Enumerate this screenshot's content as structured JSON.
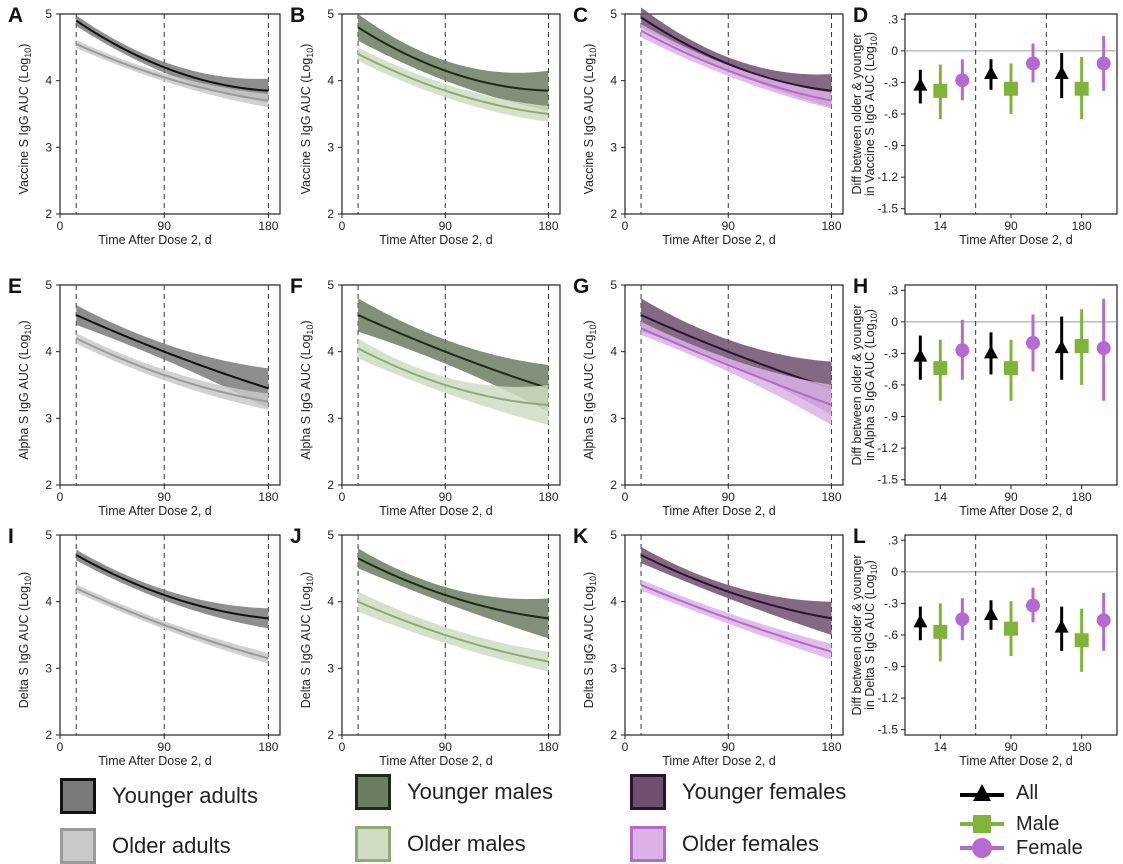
{
  "colors": {
    "younger_adults_fill": "#7a7a7a",
    "younger_adults_line": "#111111",
    "older_adults_fill": "#c9c9c9",
    "older_adults_line": "#9a9a9a",
    "younger_males_fill": "#6d7d62",
    "younger_males_line": "#1d2a16",
    "older_males_fill": "#cfdcc3",
    "older_males_line": "#8eaa77",
    "younger_females_fill": "#6e4f6f",
    "younger_females_line": "#2a1430",
    "older_females_fill": "#dcb2e6",
    "older_females_line": "#b46ac6",
    "all_marker": "#000000",
    "male_marker": "#7fb33a",
    "female_marker": "#b46ad1"
  },
  "legend": {
    "younger_adults": "Younger adults",
    "older_adults": "Older adults",
    "younger_males": "Younger males",
    "older_males": "Older males",
    "younger_females": "Younger females",
    "older_females": "Older females",
    "all": "All",
    "male": "Male",
    "female": "Female"
  },
  "chart_data": [
    {
      "panel": "A",
      "type": "line",
      "ylabel": "Vaccine S IgG AUC (Log10)",
      "xlabel": "Time After Dose 2, d",
      "xlim": [
        0,
        190
      ],
      "ylim": [
        2,
        5
      ],
      "xticks": [
        0,
        90,
        180
      ],
      "yticks": [
        2,
        3,
        4,
        5
      ],
      "vlines": [
        14,
        90,
        180
      ],
      "series": [
        {
          "group": "Younger adults",
          "x": [
            14,
            90,
            180
          ],
          "y": [
            4.9,
            4.2,
            3.85
          ],
          "band": [
            0.08,
            0.08,
            0.18
          ]
        },
        {
          "group": "Older adults",
          "x": [
            14,
            90,
            180
          ],
          "y": [
            4.55,
            4.05,
            3.7
          ],
          "band": [
            0.06,
            0.06,
            0.1
          ]
        }
      ]
    },
    {
      "panel": "B",
      "type": "line",
      "ylabel": "Vaccine S IgG AUC (Log10)",
      "xlabel": "Time After Dose 2, d",
      "xlim": [
        0,
        190
      ],
      "ylim": [
        2,
        5
      ],
      "xticks": [
        0,
        90,
        180
      ],
      "yticks": [
        2,
        3,
        4,
        5
      ],
      "vlines": [
        14,
        90,
        180
      ],
      "series": [
        {
          "group": "Younger males",
          "x": [
            14,
            90,
            180
          ],
          "y": [
            4.8,
            4.15,
            3.85
          ],
          "band": [
            0.2,
            0.15,
            0.3
          ]
        },
        {
          "group": "Older males",
          "x": [
            14,
            90,
            180
          ],
          "y": [
            4.4,
            3.85,
            3.5
          ],
          "band": [
            0.1,
            0.1,
            0.12
          ]
        }
      ]
    },
    {
      "panel": "C",
      "type": "line",
      "ylabel": "Vaccine S IgG AUC (Log10)",
      "xlabel": "Time After Dose 2, d",
      "xlim": [
        0,
        190
      ],
      "ylim": [
        2,
        5
      ],
      "xticks": [
        0,
        90,
        180
      ],
      "yticks": [
        2,
        3,
        4,
        5
      ],
      "vlines": [
        14,
        90,
        180
      ],
      "series": [
        {
          "group": "Younger females",
          "x": [
            14,
            90,
            180
          ],
          "y": [
            4.95,
            4.25,
            3.85
          ],
          "band": [
            0.15,
            0.1,
            0.25
          ]
        },
        {
          "group": "Older females",
          "x": [
            14,
            90,
            180
          ],
          "y": [
            4.75,
            4.15,
            3.7
          ],
          "band": [
            0.1,
            0.08,
            0.12
          ]
        }
      ]
    },
    {
      "panel": "D",
      "type": "scatter",
      "ylabel": "Diff between older & younger in Vaccine S IgG AUC (Log10)",
      "xlabel": "Time After Dose 2, d",
      "categories": [
        "14",
        "90",
        "180"
      ],
      "yticks": [
        ".3",
        "0",
        "-.3",
        "-.6",
        "-.9",
        "-1.2",
        "-1.5"
      ],
      "ylim": [
        -1.55,
        0.35
      ],
      "series": [
        {
          "name": "All",
          "values": [
            -0.33,
            -0.22,
            -0.22
          ],
          "low": [
            -0.5,
            -0.37,
            -0.45
          ],
          "high": [
            -0.18,
            -0.08,
            -0.02
          ]
        },
        {
          "name": "Male",
          "values": [
            -0.38,
            -0.36,
            -0.36
          ],
          "low": [
            -0.65,
            -0.6,
            -0.65
          ],
          "high": [
            -0.13,
            -0.12,
            -0.06
          ]
        },
        {
          "name": "Female",
          "values": [
            -0.28,
            -0.12,
            -0.12
          ],
          "low": [
            -0.47,
            -0.3,
            -0.38
          ],
          "high": [
            -0.08,
            0.07,
            0.14
          ]
        }
      ]
    },
    {
      "panel": "E",
      "type": "line",
      "ylabel": "Alpha S IgG AUC (Log10)",
      "xlabel": "Time After Dose 2, d",
      "xlim": [
        0,
        190
      ],
      "ylim": [
        2,
        5
      ],
      "xticks": [
        0,
        90,
        180
      ],
      "yticks": [
        2,
        3,
        4,
        5
      ],
      "vlines": [
        14,
        90,
        180
      ],
      "series": [
        {
          "group": "Younger adults",
          "x": [
            14,
            90,
            180
          ],
          "y": [
            4.55,
            4.0,
            3.45
          ],
          "band": [
            0.15,
            0.12,
            0.3
          ]
        },
        {
          "group": "Older adults",
          "x": [
            14,
            90,
            180
          ],
          "y": [
            4.2,
            3.65,
            3.25
          ],
          "band": [
            0.08,
            0.08,
            0.12
          ]
        }
      ]
    },
    {
      "panel": "F",
      "type": "line",
      "ylabel": "Alpha S IgG AUC (Log10)",
      "xlabel": "Time After Dose 2, d",
      "xlim": [
        0,
        190
      ],
      "ylim": [
        2,
        5
      ],
      "xticks": [
        0,
        90,
        180
      ],
      "yticks": [
        2,
        3,
        4,
        5
      ],
      "vlines": [
        14,
        90,
        180
      ],
      "series": [
        {
          "group": "Younger males",
          "x": [
            14,
            90,
            180
          ],
          "y": [
            4.55,
            4.0,
            3.45
          ],
          "band": [
            0.25,
            0.18,
            0.35
          ]
        },
        {
          "group": "Older males",
          "x": [
            14,
            90,
            180
          ],
          "y": [
            4.05,
            3.5,
            3.2
          ],
          "band": [
            0.15,
            0.12,
            0.3
          ]
        }
      ]
    },
    {
      "panel": "G",
      "type": "line",
      "ylabel": "Alpha S IgG AUC (Log10)",
      "xlabel": "Time After Dose 2, d",
      "xlim": [
        0,
        190
      ],
      "ylim": [
        2,
        5
      ],
      "xticks": [
        0,
        90,
        180
      ],
      "yticks": [
        2,
        3,
        4,
        5
      ],
      "vlines": [
        14,
        90,
        180
      ],
      "series": [
        {
          "group": "Younger females",
          "x": [
            14,
            90,
            180
          ],
          "y": [
            4.55,
            4.0,
            3.45
          ],
          "band": [
            0.25,
            0.18,
            0.4
          ]
        },
        {
          "group": "Older females",
          "x": [
            14,
            90,
            180
          ],
          "y": [
            4.35,
            3.8,
            3.2
          ],
          "band": [
            0.1,
            0.1,
            0.3
          ]
        }
      ]
    },
    {
      "panel": "H",
      "type": "scatter",
      "ylabel": "Diff between older & younger in Alpha S IgG AUC (Log10)",
      "xlabel": "Time After Dose 2, d",
      "categories": [
        "14",
        "90",
        "180"
      ],
      "yticks": [
        ".3",
        "0",
        "-.3",
        "-.6",
        "-.9",
        "-1.2",
        "-1.5"
      ],
      "ylim": [
        -1.55,
        0.35
      ],
      "series": [
        {
          "name": "All",
          "values": [
            -0.33,
            -0.3,
            -0.25
          ],
          "low": [
            -0.55,
            -0.5,
            -0.55
          ],
          "high": [
            -0.13,
            -0.1,
            0.05
          ]
        },
        {
          "name": "Male",
          "values": [
            -0.44,
            -0.44,
            -0.23
          ],
          "low": [
            -0.75,
            -0.75,
            -0.6
          ],
          "high": [
            -0.17,
            -0.17,
            0.12
          ]
        },
        {
          "name": "Female",
          "values": [
            -0.27,
            -0.2,
            -0.25
          ],
          "low": [
            -0.55,
            -0.47,
            -0.75
          ],
          "high": [
            0.02,
            0.07,
            0.22
          ]
        }
      ]
    },
    {
      "panel": "I",
      "type": "line",
      "ylabel": "Delta S IgG AUC (Log10)",
      "xlabel": "Time After Dose 2, d",
      "xlim": [
        0,
        190
      ],
      "ylim": [
        2,
        5
      ],
      "xticks": [
        0,
        90,
        180
      ],
      "yticks": [
        2,
        3,
        4,
        5
      ],
      "vlines": [
        14,
        90,
        180
      ],
      "series": [
        {
          "group": "Younger adults",
          "x": [
            14,
            90,
            180
          ],
          "y": [
            4.7,
            4.1,
            3.75
          ],
          "band": [
            0.08,
            0.08,
            0.15
          ]
        },
        {
          "group": "Older adults",
          "x": [
            14,
            90,
            180
          ],
          "y": [
            4.2,
            3.65,
            3.15
          ],
          "band": [
            0.06,
            0.06,
            0.08
          ]
        }
      ]
    },
    {
      "panel": "J",
      "type": "line",
      "ylabel": "Delta S IgG AUC (Log10)",
      "xlabel": "Time After Dose 2, d",
      "xlim": [
        0,
        190
      ],
      "ylim": [
        2,
        5
      ],
      "xticks": [
        0,
        90,
        180
      ],
      "yticks": [
        2,
        3,
        4,
        5
      ],
      "vlines": [
        14,
        90,
        180
      ],
      "series": [
        {
          "group": "Younger males",
          "x": [
            14,
            90,
            180
          ],
          "y": [
            4.65,
            4.1,
            3.75
          ],
          "band": [
            0.15,
            0.12,
            0.3
          ]
        },
        {
          "group": "Older males",
          "x": [
            14,
            90,
            180
          ],
          "y": [
            4.0,
            3.5,
            3.1
          ],
          "band": [
            0.15,
            0.12,
            0.15
          ]
        }
      ]
    },
    {
      "panel": "K",
      "type": "line",
      "ylabel": "Delta S IgG AUC (Log10)",
      "xlabel": "Time After Dose 2, d",
      "xlim": [
        0,
        190
      ],
      "ylim": [
        2,
        5
      ],
      "xticks": [
        0,
        90,
        180
      ],
      "yticks": [
        2,
        3,
        4,
        5
      ],
      "vlines": [
        14,
        90,
        180
      ],
      "series": [
        {
          "group": "Younger females",
          "x": [
            14,
            90,
            180
          ],
          "y": [
            4.7,
            4.15,
            3.75
          ],
          "band": [
            0.12,
            0.1,
            0.25
          ]
        },
        {
          "group": "Older females",
          "x": [
            14,
            90,
            180
          ],
          "y": [
            4.25,
            3.75,
            3.25
          ],
          "band": [
            0.08,
            0.08,
            0.12
          ]
        }
      ]
    },
    {
      "panel": "L",
      "type": "scatter",
      "ylabel": "Diff between older & younger in Delta S IgG AUC (Log10)",
      "xlabel": "Time After Dose 2, d",
      "categories": [
        "14",
        "90",
        "180"
      ],
      "yticks": [
        ".3",
        "0",
        "-.3",
        "-.6",
        "-.9",
        "-1.2",
        "-1.5"
      ],
      "ylim": [
        -1.55,
        0.35
      ],
      "series": [
        {
          "name": "All",
          "values": [
            -0.48,
            -0.41,
            -0.53
          ],
          "low": [
            -0.65,
            -0.55,
            -0.75
          ],
          "high": [
            -0.33,
            -0.27,
            -0.33
          ]
        },
        {
          "name": "Male",
          "values": [
            -0.57,
            -0.54,
            -0.65
          ],
          "low": [
            -0.85,
            -0.8,
            -0.95
          ],
          "high": [
            -0.3,
            -0.28,
            -0.35
          ]
        },
        {
          "name": "Female",
          "values": [
            -0.45,
            -0.32,
            -0.46
          ],
          "low": [
            -0.65,
            -0.48,
            -0.75
          ],
          "high": [
            -0.25,
            -0.15,
            -0.2
          ]
        }
      ]
    }
  ]
}
